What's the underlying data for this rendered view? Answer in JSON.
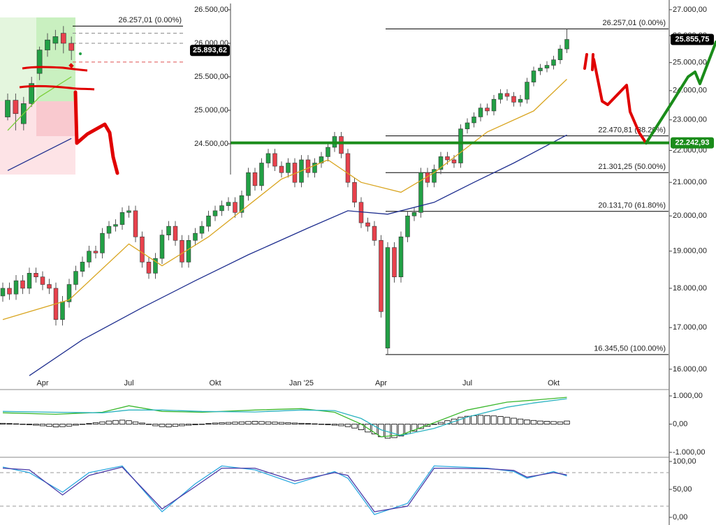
{
  "chart_data": [
    {
      "type": "candlestick",
      "log_scale": true,
      "ylim": [
        15820,
        27300
      ],
      "yticks": [
        {
          "value": 27000,
          "label": "27.000,00"
        },
        {
          "value": 26000,
          "label": "26.000,00"
        },
        {
          "value": 25000,
          "label": "25.000,00"
        },
        {
          "value": 24000,
          "label": "24.000,00"
        },
        {
          "value": 23000,
          "label": "23.000,00"
        },
        {
          "value": 22000,
          "label": "22.000,00"
        },
        {
          "value": 21000,
          "label": "21.000,00"
        },
        {
          "value": 20000,
          "label": "20.000,00"
        },
        {
          "value": 19000,
          "label": "19.000,00"
        },
        {
          "value": 18000,
          "label": "18.000,00"
        },
        {
          "value": 17000,
          "label": "17.000,00"
        },
        {
          "value": 16000,
          "label": "16.000,00"
        }
      ],
      "categories": [
        null,
        null,
        null,
        null,
        null,
        null,
        "Apr",
        null,
        null,
        null,
        null,
        null,
        null,
        null,
        null,
        null,
        null,
        null,
        null,
        "Jul",
        null,
        null,
        null,
        null,
        null,
        null,
        null,
        null,
        null,
        null,
        null,
        null,
        "Okt",
        null,
        null,
        null,
        null,
        null,
        null,
        null,
        null,
        null,
        null,
        null,
        null,
        "Jan '25",
        null,
        null,
        null,
        null,
        null,
        null,
        null,
        null,
        null,
        null,
        null,
        "Apr",
        null,
        null,
        null,
        null,
        null,
        null,
        null,
        null,
        null,
        null,
        null,
        null,
        "Jul",
        null,
        null,
        null,
        null,
        null,
        null,
        null,
        null,
        null,
        null,
        null,
        null,
        "Okt",
        null,
        null
      ],
      "open": [
        17800,
        18000,
        17850,
        18200,
        18000,
        18400,
        18300,
        18100,
        18000,
        17200,
        17650,
        18100,
        18450,
        18700,
        19000,
        18950,
        19500,
        19700,
        19750,
        20100,
        20150,
        19400,
        18700,
        18400,
        18800,
        19450,
        19700,
        19300,
        18700,
        19300,
        19500,
        19700,
        20000,
        20150,
        20300,
        20400,
        20100,
        20600,
        21300,
        20900,
        21600,
        21900,
        21500,
        21300,
        21600,
        21000,
        21700,
        21300,
        21600,
        21800,
        22100,
        22450,
        21900,
        21000,
        20400,
        19800,
        19700,
        19300,
        16500,
        19100,
        18300,
        19400,
        20000,
        20100,
        21300,
        21000,
        21400,
        21800,
        21700,
        21600,
        22700,
        22900,
        23100,
        23400,
        23300,
        23700,
        23900,
        23800,
        23600,
        23700,
        24300,
        24700,
        24800,
        24900,
        25100,
        25500
      ],
      "high": [
        18150,
        18150,
        18350,
        18350,
        18550,
        18550,
        18450,
        18250,
        18150,
        17800,
        18250,
        18600,
        18850,
        19150,
        19150,
        19650,
        19850,
        19900,
        20250,
        20300,
        20300,
        19550,
        18850,
        18950,
        19600,
        19850,
        19850,
        19450,
        19450,
        19650,
        19850,
        20150,
        20300,
        20450,
        20550,
        20550,
        20750,
        21450,
        21450,
        21750,
        22050,
        22050,
        21650,
        21750,
        21750,
        21850,
        21850,
        21750,
        21950,
        22250,
        22600,
        22600,
        22050,
        21150,
        20550,
        19950,
        19850,
        19450,
        19250,
        19250,
        19550,
        20150,
        20250,
        21450,
        21450,
        21550,
        21950,
        21950,
        21850,
        22850,
        23050,
        23250,
        23550,
        23550,
        23850,
        24050,
        24050,
        23950,
        23850,
        24450,
        24850,
        24950,
        25050,
        25250,
        25650,
        26257.01
      ],
      "low": [
        17650,
        17700,
        17700,
        17850,
        17850,
        18150,
        17950,
        17850,
        17050,
        17050,
        17500,
        17950,
        18300,
        18550,
        18800,
        18800,
        19350,
        19550,
        19600,
        19950,
        19250,
        18550,
        18250,
        18250,
        18650,
        19300,
        19150,
        18550,
        18550,
        19150,
        19350,
        19550,
        19850,
        20000,
        20150,
        19950,
        19950,
        20450,
        20750,
        20750,
        21450,
        21350,
        21150,
        21150,
        20850,
        20850,
        21150,
        21150,
        21450,
        21650,
        21950,
        21750,
        20850,
        20250,
        19650,
        19550,
        19150,
        17250,
        16345.5,
        18150,
        18150,
        19250,
        19850,
        19950,
        20850,
        20850,
        21250,
        21550,
        21450,
        21450,
        22550,
        22750,
        22950,
        23150,
        23150,
        23550,
        23650,
        23450,
        23450,
        23550,
        24150,
        24550,
        24650,
        24750,
        24950,
        25350
      ],
      "close": [
        18000,
        17850,
        18200,
        18000,
        18400,
        18300,
        18100,
        18000,
        17200,
        17650,
        18100,
        18450,
        18700,
        19000,
        18950,
        19500,
        19700,
        19750,
        20100,
        20150,
        19400,
        18700,
        18400,
        18800,
        19450,
        19700,
        19300,
        18700,
        19300,
        19500,
        19700,
        20000,
        20150,
        20300,
        20400,
        20100,
        20600,
        21300,
        20900,
        21600,
        21900,
        21500,
        21300,
        21600,
        21000,
        21700,
        21300,
        21600,
        21800,
        22100,
        22450,
        21900,
        21000,
        20400,
        19800,
        19700,
        19300,
        17400,
        19100,
        18300,
        19400,
        20000,
        20100,
        21300,
        21000,
        21400,
        21800,
        21700,
        21600,
        22700,
        22900,
        23100,
        23400,
        23300,
        23700,
        23900,
        23800,
        23600,
        23700,
        24300,
        24700,
        24800,
        24900,
        25100,
        25500,
        25855.75
      ],
      "up_color": "#22a045",
      "down_color": "#e8414c",
      "lines": [
        {
          "color": "#d9a520",
          "x": [
            0,
            10,
            19,
            24,
            31,
            42,
            49,
            54,
            60,
            65,
            73,
            80,
            85
          ],
          "values": [
            17200,
            17700,
            19200,
            18600,
            19400,
            21100,
            21700,
            21000,
            20700,
            21300,
            22600,
            23300,
            24400
          ]
        },
        {
          "color": "#1f2f8f",
          "x": [
            4,
            12,
            21,
            29,
            37,
            46,
            52,
            58,
            65,
            71,
            77,
            85
          ],
          "values": [
            15850,
            16700,
            17500,
            18200,
            18900,
            19650,
            20150,
            20050,
            20400,
            21000,
            21600,
            22500
          ]
        }
      ],
      "levels": [
        {
          "value": 26257.01,
          "label": "26.257,01 (0.00%)",
          "color": "#000000"
        },
        {
          "value": 22470.81,
          "label": "22.470,81 (38.20%)",
          "color": "#000000"
        },
        {
          "value": 21301.25,
          "label": "21.301,25 (50.00%)",
          "color": "#000000"
        },
        {
          "value": 20131.7,
          "label": "20.131,70 (61.80%)",
          "color": "#000000"
        },
        {
          "value": 16345.5,
          "label": "16.345,50 (100.00%)",
          "color": "#000000"
        }
      ],
      "price_labels": [
        {
          "value": 25855.75,
          "label": "25.855,75",
          "color": "#000000"
        },
        {
          "value": 22242.93,
          "label": "22.242,93",
          "color": "#1a8c1a",
          "line": true
        }
      ]
    },
    {
      "type": "bar",
      "log_scale": false,
      "ylim": [
        -1175,
        1175
      ],
      "yticks": [
        {
          "value": 1000,
          "label": "1.000,00"
        },
        {
          "value": 0,
          "label": "0,00"
        },
        {
          "value": -1000,
          "label": "-1.000,00"
        }
      ],
      "values": [
        30,
        20,
        10,
        0,
        -20,
        -40,
        -60,
        -80,
        -100,
        -90,
        -70,
        -40,
        -10,
        20,
        50,
        80,
        110,
        130,
        140,
        120,
        80,
        40,
        -10,
        -60,
        -90,
        -100,
        -80,
        -60,
        -40,
        -20,
        0,
        20,
        40,
        50,
        60,
        70,
        80,
        90,
        100,
        90,
        80,
        70,
        60,
        50,
        40,
        30,
        20,
        10,
        0,
        -20,
        -40,
        -60,
        -90,
        -140,
        -200,
        -280,
        -350,
        -450,
        -500,
        -480,
        -420,
        -340,
        -250,
        -160,
        -80,
        0,
        60,
        120,
        180,
        240,
        280,
        300,
        310,
        300,
        290,
        270,
        240,
        210,
        180,
        150,
        130,
        110,
        100,
        90,
        80,
        110
      ],
      "color": "#ffffff",
      "lines": [
        {
          "color": "#3cb82e",
          "x": [
            0,
            8,
            15,
            19,
            24,
            30,
            38,
            45,
            50,
            54,
            57,
            60,
            65,
            70,
            76,
            80,
            85
          ],
          "values": [
            400,
            350,
            420,
            650,
            450,
            420,
            500,
            550,
            420,
            0,
            -450,
            -380,
            50,
            500,
            780,
            850,
            950
          ]
        },
        {
          "color": "#2bb3c0",
          "x": [
            0,
            8,
            15,
            19,
            24,
            30,
            38,
            45,
            50,
            54,
            57,
            60,
            65,
            70,
            76,
            80,
            85
          ],
          "values": [
            450,
            420,
            400,
            500,
            500,
            450,
            430,
            500,
            480,
            200,
            -200,
            -400,
            -150,
            250,
            600,
            750,
            900
          ]
        }
      ]
    },
    {
      "type": "line",
      "log_scale": false,
      "ylim": [
        -13.75,
        107.5
      ],
      "yticks": [
        {
          "value": 100,
          "label": "100,00"
        },
        {
          "value": 50,
          "label": "50,00"
        },
        {
          "value": 0,
          "label": "0,00"
        }
      ],
      "lines": [
        {
          "color": "#2aa8e0",
          "x": [
            0,
            4,
            9,
            13,
            18,
            24,
            29,
            33,
            38,
            44,
            50,
            52,
            56,
            61,
            65,
            73,
            77,
            79,
            83,
            85
          ],
          "values": [
            90,
            80,
            45,
            80,
            92,
            10,
            60,
            92,
            85,
            60,
            82,
            70,
            5,
            25,
            92,
            88,
            82,
            70,
            82,
            74
          ]
        },
        {
          "color": "#4a3aa8",
          "x": [
            0,
            4,
            9,
            13,
            18,
            24,
            29,
            33,
            38,
            44,
            50,
            52,
            56,
            61,
            65,
            73,
            77,
            79,
            83,
            85
          ],
          "values": [
            88,
            85,
            40,
            75,
            90,
            15,
            55,
            88,
            88,
            65,
            80,
            75,
            10,
            20,
            88,
            87,
            84,
            72,
            80,
            76
          ]
        }
      ],
      "levels": [
        {
          "value": 80,
          "color": "#999999",
          "dashed": true
        },
        {
          "value": 20,
          "color": "#999999",
          "dashed": true
        }
      ]
    },
    {
      "type": "candlestick",
      "log_scale": false,
      "ylim": [
        24041,
        26646
      ],
      "yticks": [
        {
          "value": 26500,
          "label": "26.500,00"
        },
        {
          "value": 26000,
          "label": "26.000,00"
        },
        {
          "value": 25500,
          "label": "25.500,00"
        },
        {
          "value": 25000,
          "label": "25.000,00"
        },
        {
          "value": 24500,
          "label": "24.500,00"
        }
      ],
      "open": [
        24900,
        25150,
        24800,
        25100,
        25550,
        25900,
        26000,
        26150,
        26000
      ],
      "high": [
        25250,
        25250,
        25200,
        25500,
        25950,
        26150,
        26200,
        26257.01,
        26100
      ],
      "low": [
        24850,
        24700,
        24700,
        25050,
        25450,
        25800,
        25900,
        25850,
        25750
      ],
      "close": [
        25150,
        24950,
        25100,
        25400,
        25900,
        26050,
        26100,
        26000,
        25893.62
      ],
      "up_color": "#22a045",
      "down_color": "#e8414c",
      "lines": [
        {
          "color": "#7ccf3a",
          "x": [
            0,
            4,
            8
          ],
          "values": [
            24700,
            25200,
            25500
          ]
        },
        {
          "color": "#1f2f8f",
          "x": [
            0,
            8
          ],
          "values": [
            24100,
            24580
          ]
        }
      ],
      "levels": [
        {
          "value": 26257.01,
          "label": "26.257,01 (0.00%)",
          "color": "#000000"
        },
        {
          "value": 26150,
          "color": "#888888",
          "dashed": true
        },
        {
          "value": 26000,
          "color": "#888888",
          "dashed": true
        },
        {
          "value": 25720,
          "color": "#e05050",
          "dashed": true
        }
      ],
      "price_labels": [
        {
          "value": 25893.62,
          "label": "25.893,62",
          "color": "#000000"
        }
      ]
    }
  ]
}
